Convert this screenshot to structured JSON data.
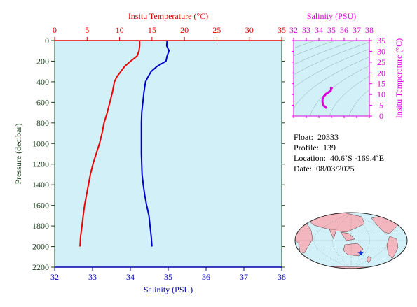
{
  "chart_data": [
    {
      "type": "line",
      "title": "",
      "top_axis": {
        "label": "Insitu Temperature (°C)",
        "range": [
          0,
          35
        ],
        "ticks": [
          0,
          5,
          10,
          15,
          20,
          25,
          30,
          35
        ],
        "color": "#dd0000"
      },
      "bottom_axis": {
        "label": "Salinity (PSU)",
        "range": [
          32,
          38
        ],
        "ticks": [
          32,
          33,
          34,
          35,
          36,
          37,
          38
        ],
        "color": "#0000aa"
      },
      "y_axis": {
        "label": "Pressure (decibar)",
        "range": [
          0,
          2200
        ],
        "ticks": [
          0,
          200,
          400,
          600,
          800,
          1000,
          1200,
          1400,
          1600,
          1800,
          2000,
          2200
        ],
        "inverted": true,
        "color": "#224422"
      },
      "background": "#d2f0f8",
      "series": [
        {
          "color": "#ee0000",
          "axis": "temperature",
          "points": [
            [
              13.1,
              0
            ],
            [
              13.1,
              50
            ],
            [
              13.0,
              100
            ],
            [
              12.7,
              150
            ],
            [
              11.7,
              200
            ],
            [
              10.8,
              250
            ],
            [
              10.2,
              300
            ],
            [
              9.6,
              350
            ],
            [
              9.2,
              400
            ],
            [
              8.9,
              500
            ],
            [
              8.5,
              600
            ],
            [
              8.1,
              700
            ],
            [
              7.6,
              800
            ],
            [
              7.3,
              900
            ],
            [
              6.9,
              1000
            ],
            [
              6.4,
              1100
            ],
            [
              5.9,
              1200
            ],
            [
              5.5,
              1300
            ],
            [
              5.2,
              1400
            ],
            [
              4.9,
              1500
            ],
            [
              4.6,
              1600
            ],
            [
              4.4,
              1700
            ],
            [
              4.2,
              1800
            ],
            [
              4.0,
              1900
            ],
            [
              3.9,
              2000
            ]
          ]
        },
        {
          "color": "#0000cc",
          "axis": "salinity",
          "points": [
            [
              34.97,
              0
            ],
            [
              34.96,
              50
            ],
            [
              35.02,
              100
            ],
            [
              34.97,
              150
            ],
            [
              34.94,
              200
            ],
            [
              34.71,
              250
            ],
            [
              34.55,
              300
            ],
            [
              34.47,
              350
            ],
            [
              34.4,
              400
            ],
            [
              34.36,
              500
            ],
            [
              34.33,
              600
            ],
            [
              34.3,
              700
            ],
            [
              34.29,
              800
            ],
            [
              34.29,
              900
            ],
            [
              34.29,
              1000
            ],
            [
              34.29,
              1100
            ],
            [
              34.3,
              1200
            ],
            [
              34.31,
              1300
            ],
            [
              34.34,
              1400
            ],
            [
              34.38,
              1500
            ],
            [
              34.43,
              1600
            ],
            [
              34.49,
              1700
            ],
            [
              34.52,
              1800
            ],
            [
              34.55,
              1900
            ],
            [
              34.57,
              2000
            ]
          ]
        }
      ]
    },
    {
      "type": "scatter",
      "title": "",
      "x_axis": {
        "label": "Salinity (PSU)",
        "range": [
          32,
          38
        ],
        "ticks": [
          32,
          33,
          34,
          35,
          36,
          37,
          38
        ],
        "color": "#dd00dd"
      },
      "y_axis": {
        "label": "Insitu Temperature (°C)",
        "range": [
          0,
          35
        ],
        "ticks": [
          0,
          5,
          10,
          15,
          20,
          25,
          30,
          35
        ],
        "color": "#dd00dd"
      },
      "background": "#d2f0f8",
      "series": [
        {
          "color": "#dd00dd",
          "points": [
            [
              34.97,
              13.1
            ],
            [
              34.96,
              13.1
            ],
            [
              35.02,
              13.0
            ],
            [
              34.97,
              12.7
            ],
            [
              34.94,
              11.7
            ],
            [
              34.71,
              10.8
            ],
            [
              34.55,
              10.2
            ],
            [
              34.47,
              9.6
            ],
            [
              34.4,
              9.2
            ],
            [
              34.36,
              8.9
            ],
            [
              34.33,
              8.5
            ],
            [
              34.3,
              8.1
            ],
            [
              34.29,
              7.6
            ],
            [
              34.29,
              7.3
            ],
            [
              34.29,
              6.9
            ],
            [
              34.29,
              6.4
            ],
            [
              34.3,
              5.9
            ],
            [
              34.31,
              5.5
            ],
            [
              34.34,
              5.2
            ],
            [
              34.38,
              4.9
            ],
            [
              34.43,
              4.6
            ],
            [
              34.49,
              4.4
            ],
            [
              34.52,
              4.2
            ],
            [
              34.55,
              4.0
            ],
            [
              34.57,
              3.9
            ]
          ]
        }
      ]
    }
  ],
  "info": {
    "float_label": "Float:",
    "float_value": "20333",
    "profile_label": "Profile:",
    "profile_value": "139",
    "location_label": "Location:",
    "location_value": "40.6˚S  -169.4˚E",
    "date_label": "Date:",
    "date_value": "08/03/2025"
  },
  "map": {
    "marker_lon": -169.4,
    "marker_lat": -40.6,
    "marker_color": "#1133dd",
    "ocean_color": "#d2f0f8",
    "land_color": "#f4b6be"
  }
}
